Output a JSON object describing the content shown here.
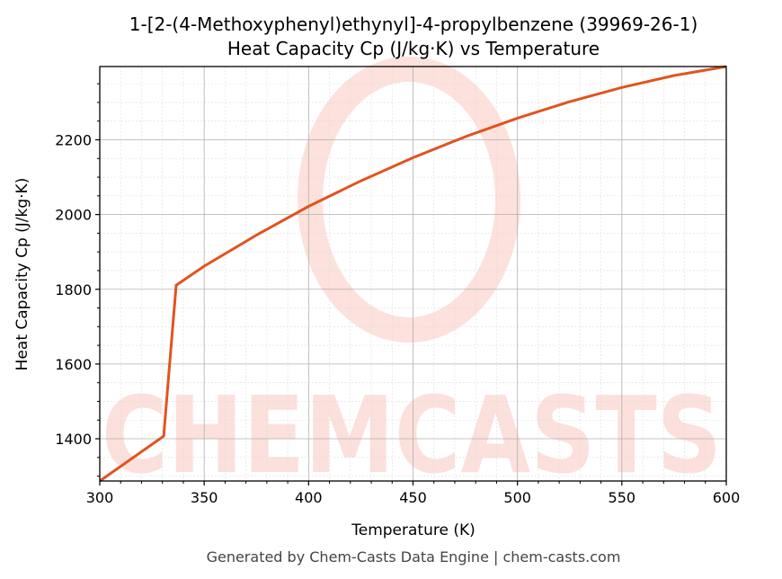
{
  "chart_data": {
    "type": "line",
    "title_line1": "1-[2-(4-Methoxyphenyl)ethynyl]-4-propylbenzene (39969-26-1)",
    "title_line2": "Heat Capacity Cp (J/kg·K) vs Temperature",
    "xlabel": "Temperature (K)",
    "ylabel": "Heat Capacity Cp (J/kg·K)",
    "xlim": [
      300,
      600
    ],
    "ylim": [
      1287,
      2396
    ],
    "xticks": [
      300,
      350,
      400,
      450,
      500,
      550,
      600
    ],
    "yticks": [
      1400,
      1600,
      1800,
      2000,
      2200
    ],
    "grid": true,
    "series": [
      {
        "name": "Cp",
        "color": "#e0541f",
        "x": [
          300,
          330.6,
          336.6,
          350,
          375,
          400,
          425,
          450,
          475,
          500,
          525,
          550,
          575,
          600
        ],
        "y": [
          1287,
          1407,
          1811,
          1862,
          1945,
          2022,
          2090,
          2152,
          2208,
          2258,
          2302,
          2340,
          2372,
          2396
        ]
      }
    ],
    "footer": "Generated by Chem-Casts Data Engine | chem-casts.com",
    "watermark": "CHEMCASTS"
  }
}
